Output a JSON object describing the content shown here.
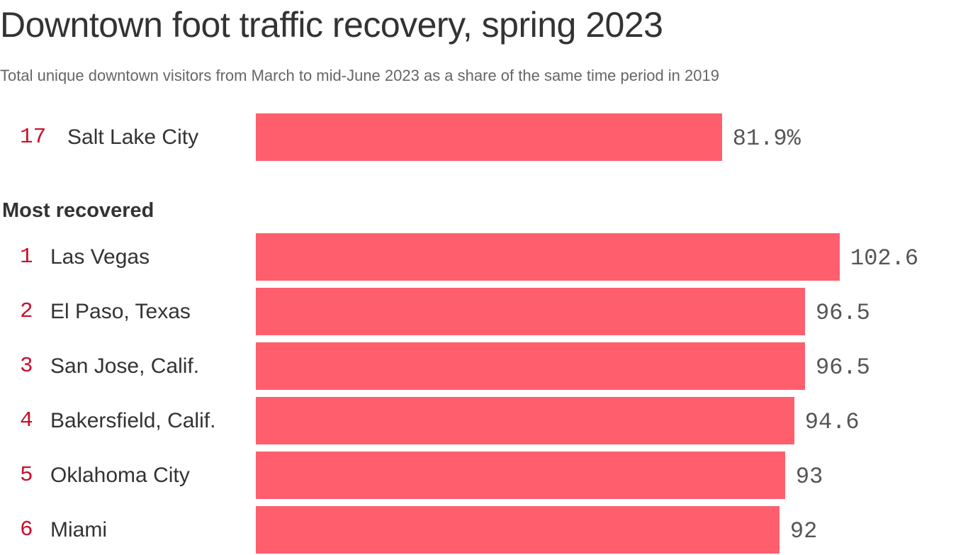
{
  "chart_data": {
    "type": "bar",
    "orientation": "horizontal",
    "title": "Downtown foot traffic recovery, spring 2023",
    "subtitle": "Total unique downtown visitors from March to mid-June 2023 as a share of the same time period in 2019",
    "bar_color": "#ff5f6d",
    "rank_color": "#c8102e",
    "highlight": {
      "rank": "17",
      "city": "Salt Lake City",
      "value": 81.9,
      "label": "81.9%"
    },
    "section_label": "Most recovered",
    "rows": [
      {
        "rank": "1",
        "city": "Las Vegas",
        "value": 102.6,
        "label": "102.6"
      },
      {
        "rank": "2",
        "city": "El Paso, Texas",
        "value": 96.5,
        "label": "96.5"
      },
      {
        "rank": "3",
        "city": "San Jose, Calif.",
        "value": 96.5,
        "label": "96.5"
      },
      {
        "rank": "4",
        "city": "Bakersfield, Calif.",
        "value": 94.6,
        "label": "94.6"
      },
      {
        "rank": "5",
        "city": "Oklahoma City",
        "value": 93,
        "label": "93"
      },
      {
        "rank": "6",
        "city": "Miami",
        "value": 92,
        "label": "92"
      }
    ],
    "xlim": [
      0,
      102.6
    ],
    "grid": false
  }
}
